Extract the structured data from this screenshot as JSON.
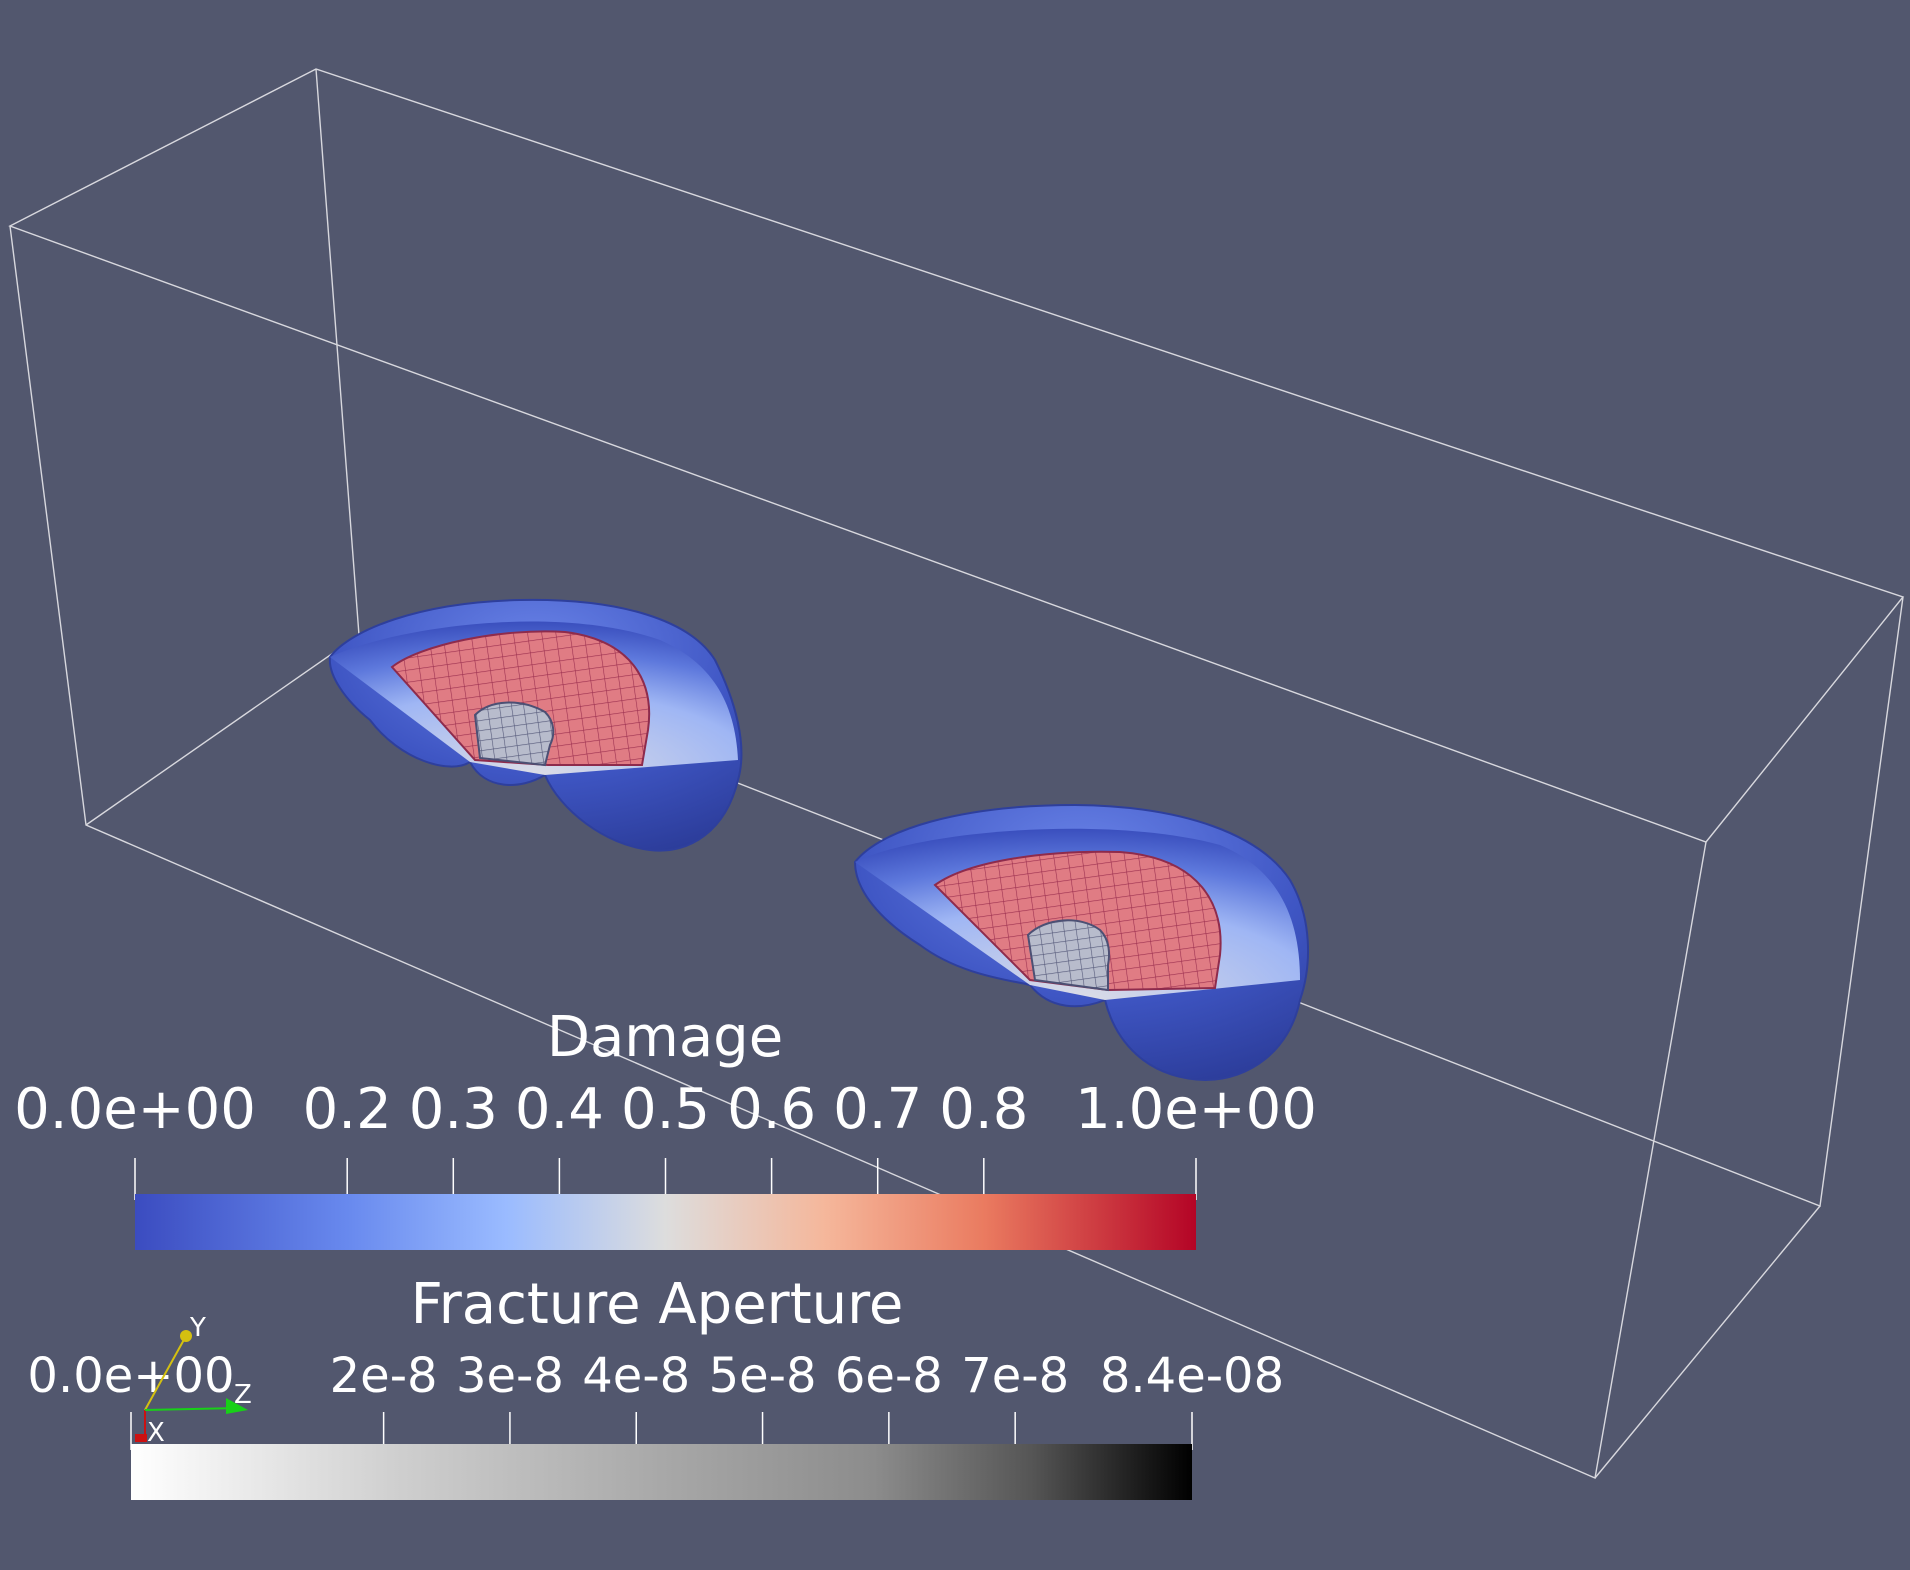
{
  "colors": {
    "background": "#52576e",
    "outline": "#d8d8de",
    "damage_low": "#3b4cc0",
    "damage_mid": "#dddddd",
    "damage_high": "#b40426",
    "aperture_low": "#ffffff",
    "aperture_high": "#000000"
  },
  "damage_legend": {
    "title": "Damage",
    "range": [
      0,
      1
    ],
    "colormap": "cool-to-warm",
    "ticks": [
      {
        "value": 0.0,
        "label": "0.0e+00"
      },
      {
        "value": 0.2,
        "label": "0.2"
      },
      {
        "value": 0.3,
        "label": "0.3"
      },
      {
        "value": 0.4,
        "label": "0.4"
      },
      {
        "value": 0.5,
        "label": "0.5"
      },
      {
        "value": 0.6,
        "label": "0.6"
      },
      {
        "value": 0.7,
        "label": "0.7"
      },
      {
        "value": 0.8,
        "label": "0.8"
      },
      {
        "value": 1.0,
        "label": "1.0e+00"
      }
    ]
  },
  "aperture_legend": {
    "title": "Fracture Aperture",
    "range": [
      0,
      8.4e-08
    ],
    "colormap": "white-to-black",
    "ticks": [
      {
        "value": 0,
        "label": "0.0e+00"
      },
      {
        "value": 2e-08,
        "label": "2e-8"
      },
      {
        "value": 3e-08,
        "label": "3e-8"
      },
      {
        "value": 4e-08,
        "label": "4e-8"
      },
      {
        "value": 5e-08,
        "label": "5e-8"
      },
      {
        "value": 6e-08,
        "label": "6e-8"
      },
      {
        "value": 7e-08,
        "label": "7e-8"
      },
      {
        "value": 8.4e-08,
        "label": "8.4e-08"
      }
    ]
  },
  "orientation_axes": {
    "x": {
      "label": "X",
      "color": "#cc1111"
    },
    "y": {
      "label": "Y",
      "color": "#d4c010"
    },
    "z": {
      "label": "Z",
      "color": "#18d018"
    }
  }
}
